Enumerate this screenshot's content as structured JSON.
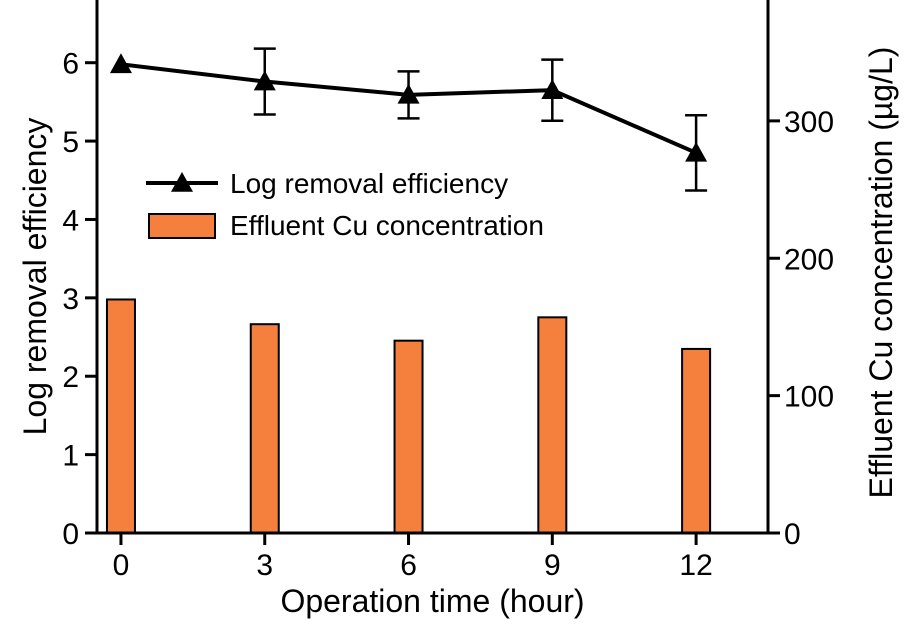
{
  "chart_data": {
    "type": "bar+line",
    "x_label": "Operation time (hour)",
    "x": [
      0,
      3,
      6,
      9,
      12
    ],
    "x_ticks": [
      "0",
      "3",
      "6",
      "9",
      "12"
    ],
    "x_range": [
      -0.5,
      13.5
    ],
    "left_axis": {
      "label": "Log removal efficiency",
      "range": [
        0,
        6.8
      ],
      "ticks": [
        "0",
        "1",
        "2",
        "3",
        "4",
        "5",
        "6"
      ]
    },
    "right_axis": {
      "label": "Effluent Cu concentration (µg/L)",
      "range": [
        0,
        388
      ],
      "ticks": [
        "0",
        "100",
        "200",
        "300"
      ]
    },
    "series": [
      {
        "name": "Log removal efficiency",
        "kind": "line",
        "axis": "left",
        "marker": "triangle",
        "color": "#000000",
        "values": [
          5.98,
          5.76,
          5.59,
          5.65,
          4.85
        ],
        "error": [
          0.0,
          0.42,
          0.3,
          0.39,
          0.48
        ]
      },
      {
        "name": "Effluent Cu concentration",
        "kind": "bar",
        "axis": "right",
        "color": "#f5803e",
        "values": [
          170,
          152,
          140,
          157,
          134
        ]
      }
    ],
    "legend_position": "upper-left"
  }
}
